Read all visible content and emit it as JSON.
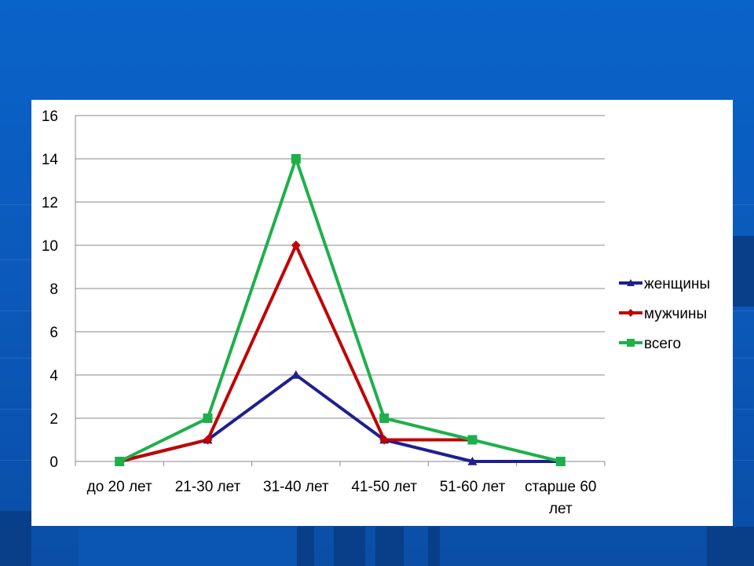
{
  "slide": {
    "background_color": "#0a5ec2"
  },
  "chart_data": {
    "type": "line",
    "categories": [
      "до 20 лет",
      "21-30 лет",
      "31-40 лет",
      "41-50 лет",
      "51-60 лет",
      "старше 60 лет"
    ],
    "category_lines": [
      [
        "до 20 лет"
      ],
      [
        "21-30 лет"
      ],
      [
        "31-40 лет"
      ],
      [
        "41-50 лет"
      ],
      [
        "51-60 лет"
      ],
      [
        "старше 60",
        "лет"
      ]
    ],
    "series": [
      {
        "name": "женщины",
        "values": [
          0,
          1,
          4,
          1,
          0,
          0
        ],
        "color": "#1f1f8f",
        "marker": "triangle"
      },
      {
        "name": "мужчины",
        "values": [
          0,
          1,
          10,
          1,
          1,
          null
        ],
        "color": "#c00000",
        "marker": "diamond"
      },
      {
        "name": "всего",
        "values": [
          0,
          2,
          14,
          2,
          1,
          0
        ],
        "color": "#1db04a",
        "marker": "square"
      }
    ],
    "ylim": [
      0,
      16
    ],
    "yticks": [
      0,
      2,
      4,
      6,
      8,
      10,
      12,
      14,
      16
    ],
    "grid": true,
    "legend_position": "right",
    "title": "",
    "xlabel": "",
    "ylabel": ""
  }
}
